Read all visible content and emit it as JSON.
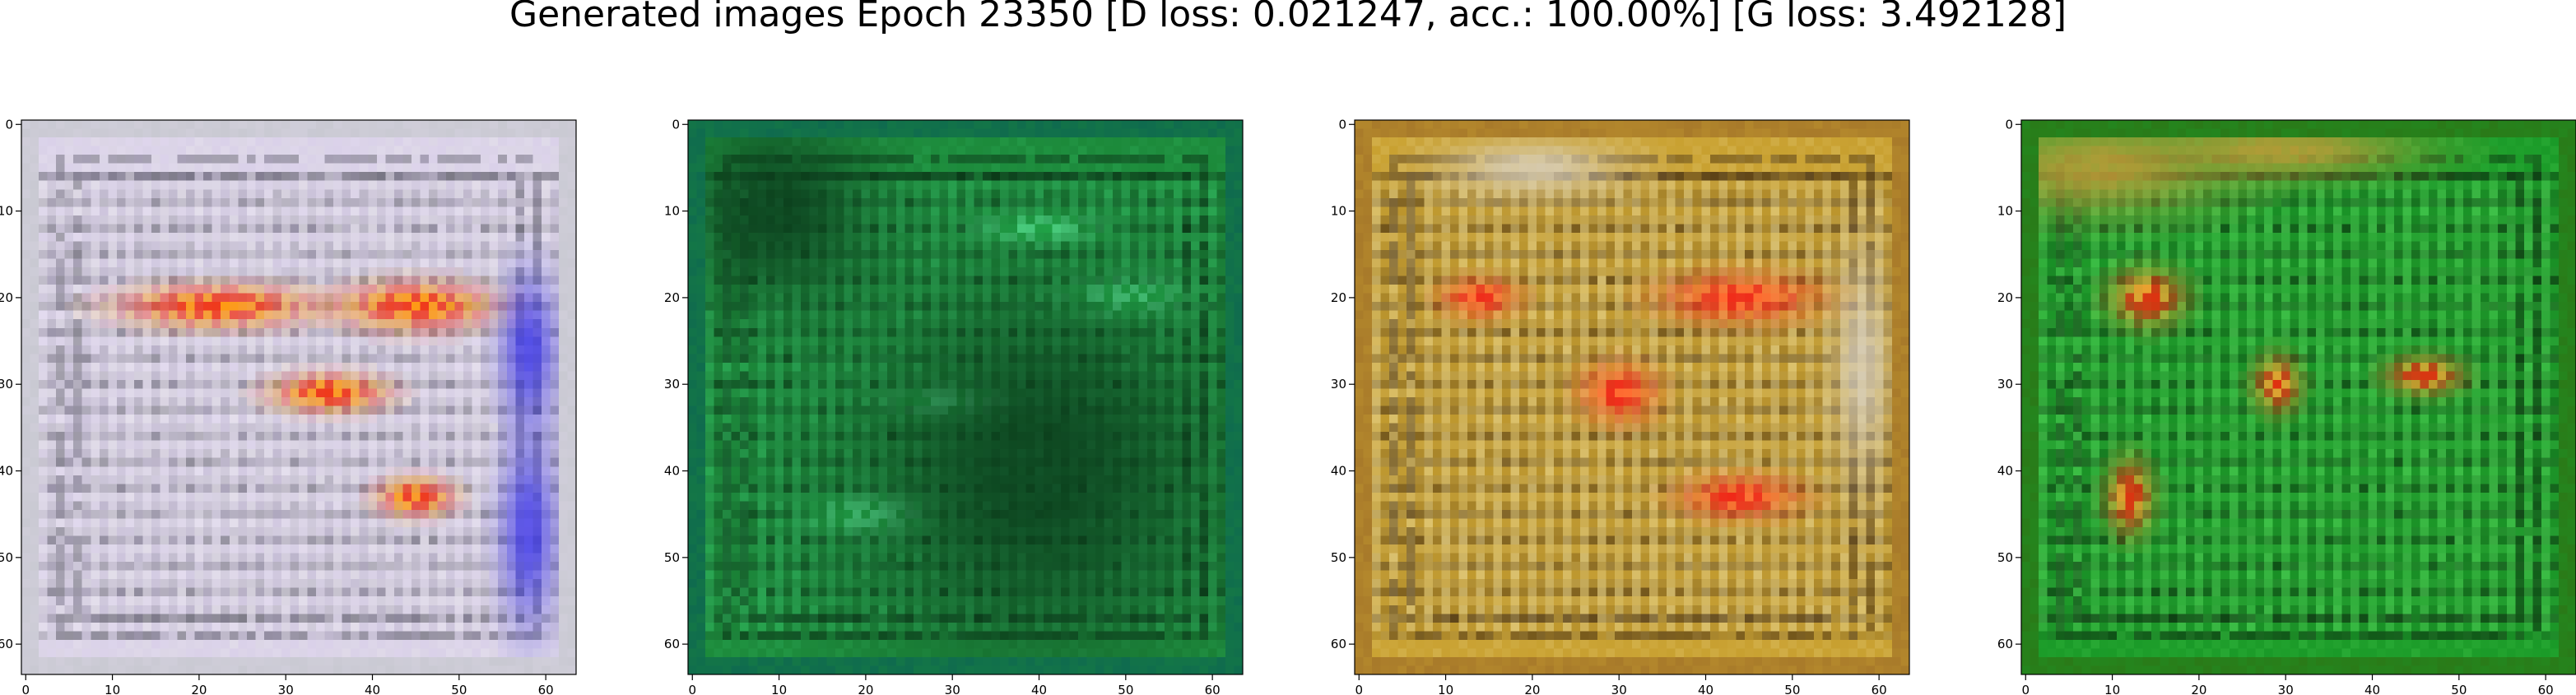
{
  "title": "Generated images Epoch 23350 [D loss: 0.021247, acc.: 100.00%] [G loss: 3.492128]",
  "panels": [
    {
      "palette": {
        "base": "#dcd6e6",
        "frame": "#c9c9d2",
        "row_dark": "#4b4b55",
        "row_light": "#f3eff7",
        "accent": "#ff9a10",
        "accent2": "#f03818",
        "blob": "#3a36e6",
        "tint": "#c8a8ff"
      },
      "x_ticks": [
        "0",
        "10",
        "20",
        "30",
        "40",
        "50",
        "60"
      ],
      "y_ticks": [
        "0",
        "10",
        "20",
        "30",
        "40",
        "50",
        "60"
      ]
    },
    {
      "palette": {
        "base": "#1c8a3a",
        "frame": "#0f6b4e",
        "row_dark": "#041a0a",
        "row_light": "#38c86a",
        "accent": "#22b04a",
        "accent2": "#52e08a",
        "blob": "#0a3a1a",
        "tint": "#2a9a5a"
      },
      "x_ticks": [
        "0",
        "10",
        "20",
        "30",
        "40",
        "50",
        "60"
      ],
      "y_ticks": [
        "0",
        "10",
        "20",
        "30",
        "40",
        "50",
        "60"
      ]
    },
    {
      "palette": {
        "base": "#c8a030",
        "frame": "#a87a2a",
        "row_dark": "#2a1608",
        "row_light": "#f2e2a0",
        "accent": "#f02818",
        "accent2": "#ff6a30",
        "blob": "#d8d0c0",
        "tint": "#e0c060"
      },
      "x_ticks": [
        "0",
        "10",
        "20",
        "30",
        "40",
        "50",
        "60"
      ],
      "y_ticks": [
        "0",
        "10",
        "20",
        "30",
        "40",
        "50",
        "60"
      ]
    },
    {
      "palette": {
        "base": "#1a9a28",
        "frame": "#2a7a18",
        "row_dark": "#061408",
        "row_light": "#58e060",
        "accent": "#e03010",
        "accent2": "#f0a030",
        "blob": "#c89a38",
        "tint": "#40c040"
      },
      "x_ticks": [
        "0",
        "10",
        "20",
        "30",
        "40",
        "50",
        "60"
      ],
      "y_ticks": [
        "0",
        "10",
        "20",
        "30",
        "40",
        "50",
        "60"
      ]
    }
  ]
}
